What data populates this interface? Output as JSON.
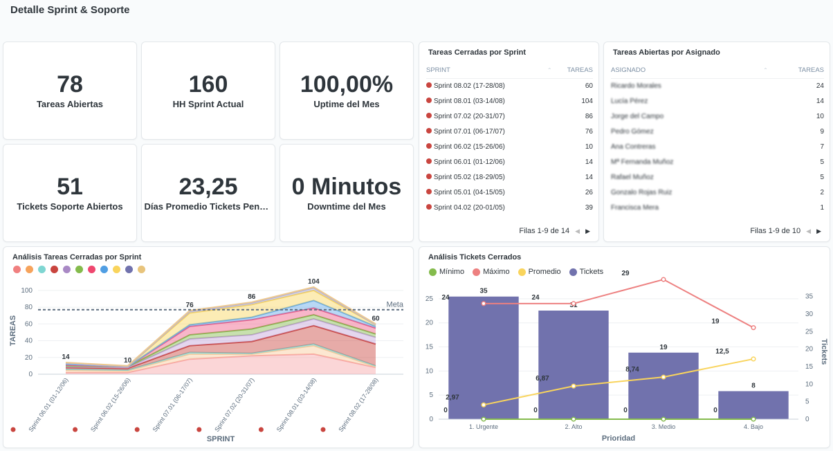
{
  "page_title": "Detalle Sprint & Soporte",
  "kpis": [
    {
      "value": "78",
      "label": "Tareas Abiertas"
    },
    {
      "value": "160",
      "label": "HH Sprint Actual"
    },
    {
      "value": "100,00%",
      "label": "Uptime del Mes"
    },
    {
      "value": "51",
      "label": "Tickets Soporte Abiertos"
    },
    {
      "value": "23,25",
      "label": "Días Promedio Tickets Pendientes"
    },
    {
      "value": "0 Minutos",
      "label": "Downtime del Mes"
    }
  ],
  "closed_tasks_table": {
    "title": "Tareas Cerradas por Sprint",
    "col_sprint": "SPRINT",
    "col_tasks": "TAREAS",
    "rows": [
      {
        "sprint": "Sprint 08.02 (17-28/08)",
        "tasks": "60"
      },
      {
        "sprint": "Sprint 08.01 (03-14/08)",
        "tasks": "104"
      },
      {
        "sprint": "Sprint 07.02 (20-31/07)",
        "tasks": "86"
      },
      {
        "sprint": "Sprint 07.01 (06-17/07)",
        "tasks": "76"
      },
      {
        "sprint": "Sprint 06.02 (15-26/06)",
        "tasks": "10"
      },
      {
        "sprint": "Sprint 06.01 (01-12/06)",
        "tasks": "14"
      },
      {
        "sprint": "Sprint 05.02 (18-29/05)",
        "tasks": "14"
      },
      {
        "sprint": "Sprint 05.01 (04-15/05)",
        "tasks": "26"
      },
      {
        "sprint": "Sprint 04.02 (20-01/05)",
        "tasks": "39"
      }
    ],
    "pager": "Filas 1-9 de 14"
  },
  "open_tasks_table": {
    "title": "Tareas Abiertas por Asignado",
    "col_assignee": "ASIGNADO",
    "col_tasks": "TAREAS",
    "rows": [
      {
        "assignee": "Ricardo Morales",
        "tasks": "24"
      },
      {
        "assignee": "Lucía Pérez",
        "tasks": "14"
      },
      {
        "assignee": "Jorge del Campo",
        "tasks": "10"
      },
      {
        "assignee": "Pedro Gómez",
        "tasks": "9"
      },
      {
        "assignee": "Ana Contreras",
        "tasks": "7"
      },
      {
        "assignee": "Mª Fernanda Muñoz",
        "tasks": "5"
      },
      {
        "assignee": "Rafael Muñoz",
        "tasks": "5"
      },
      {
        "assignee": "Gonzalo Rojas Ruiz",
        "tasks": "2"
      },
      {
        "assignee": "Francisca Mera",
        "tasks": "1"
      }
    ],
    "pager": "Filas 1-9 de 10"
  },
  "colors": {
    "accent": "#509ee3",
    "purple": "#7172ad",
    "min": "#84bb4c",
    "max": "#ed8080",
    "avg": "#f9d45c",
    "meta": "#5c6d7e"
  },
  "chart_data": [
    {
      "type": "area",
      "title": "Análisis Tareas Cerradas por Sprint",
      "xlabel": "SPRINT",
      "ylabel": "TAREAS",
      "ylim": [
        0,
        100
      ],
      "yticks": [
        "0",
        "20",
        "40",
        "60",
        "80",
        "100"
      ],
      "categories": [
        "Sprint 06.01 (01-12/06)",
        "Sprint 06.02 (15-26/06)",
        "Sprint 07.01 (06-17/07)",
        "Sprint 07.02 (20-31/07)",
        "Sprint 08.01 (03-14/08)",
        "Sprint 08.02 (17-28/08)"
      ],
      "totals": [
        14,
        10,
        76,
        86,
        104,
        60
      ],
      "total_labels": [
        "14",
        "10",
        "76",
        "86",
        "104",
        "60"
      ],
      "goal": 77,
      "goal_label": "Meta",
      "legend_colors": [
        "#f08080",
        "#f6a35c",
        "#7fd6d2",
        "#c9453f",
        "#a989c5",
        "#84bb4c",
        "#ef476f",
        "#509ee3",
        "#f9d45c",
        "#7172ad",
        "#e8c47c"
      ],
      "series_colors": [
        "#f7a5a7",
        "#f9c99a",
        "#8fd9d4",
        "#c9453f",
        "#c3a5da",
        "#84bb4c",
        "#ef5d87",
        "#62a9e8",
        "#f9d45c",
        "#b0afd9",
        "#edc98f"
      ],
      "series": [
        {
          "values": [
            2,
            2,
            18,
            22,
            24,
            8
          ]
        },
        {
          "values": [
            3,
            2,
            6,
            2,
            10,
            1
          ]
        },
        {
          "values": [
            1,
            1,
            2,
            1,
            2,
            1
          ]
        },
        {
          "values": [
            2,
            2,
            8,
            14,
            22,
            26
          ]
        },
        {
          "values": [
            1,
            1,
            8,
            8,
            8,
            8
          ]
        },
        {
          "values": [
            1,
            1,
            5,
            7,
            5,
            4
          ]
        },
        {
          "values": [
            1,
            0,
            10,
            11,
            8,
            7
          ]
        },
        {
          "values": [
            1,
            0,
            2,
            3,
            9,
            2
          ]
        },
        {
          "values": [
            1,
            0,
            14,
            15,
            12,
            2
          ]
        },
        {
          "values": [
            0,
            0,
            2,
            2,
            3,
            0
          ]
        },
        {
          "values": [
            1,
            1,
            1,
            1,
            1,
            1
          ]
        }
      ]
    },
    {
      "type": "bar",
      "title": "Análisis Tickets Cerrados",
      "xlabel": "Prioridad",
      "ylabel_right": "Tickets",
      "categories": [
        "1. Urgente",
        "2. Alto",
        "3. Medio",
        "4. Bajo"
      ],
      "left_ylim": [
        0,
        25
      ],
      "left_ticks": [
        "0",
        "5",
        "10",
        "15",
        "20",
        "25"
      ],
      "right_ylim": [
        0,
        35
      ],
      "right_ticks": [
        "0",
        "5",
        "10",
        "15",
        "20",
        "25",
        "30",
        "35"
      ],
      "legend": [
        "Mínimo",
        "Máximo",
        "Promedio",
        "Tickets"
      ],
      "series": [
        {
          "name": "Tickets",
          "axis": "right",
          "values": [
            35,
            31,
            19,
            8
          ],
          "labels": [
            "35",
            "31",
            "19",
            "8"
          ]
        },
        {
          "name": "Mínimo",
          "axis": "left",
          "values": [
            0,
            0,
            0,
            0
          ],
          "labels": [
            "0",
            "0",
            "0",
            "0"
          ]
        },
        {
          "name": "Máximo",
          "axis": "left",
          "values": [
            24,
            24,
            29,
            19
          ],
          "labels": [
            "24",
            "24",
            "29",
            "19"
          ]
        },
        {
          "name": "Promedio",
          "axis": "left",
          "values": [
            2.97,
            6.87,
            8.74,
            12.5
          ],
          "labels": [
            "2,97",
            "6,87",
            "8,74",
            "12,5"
          ]
        }
      ]
    }
  ]
}
